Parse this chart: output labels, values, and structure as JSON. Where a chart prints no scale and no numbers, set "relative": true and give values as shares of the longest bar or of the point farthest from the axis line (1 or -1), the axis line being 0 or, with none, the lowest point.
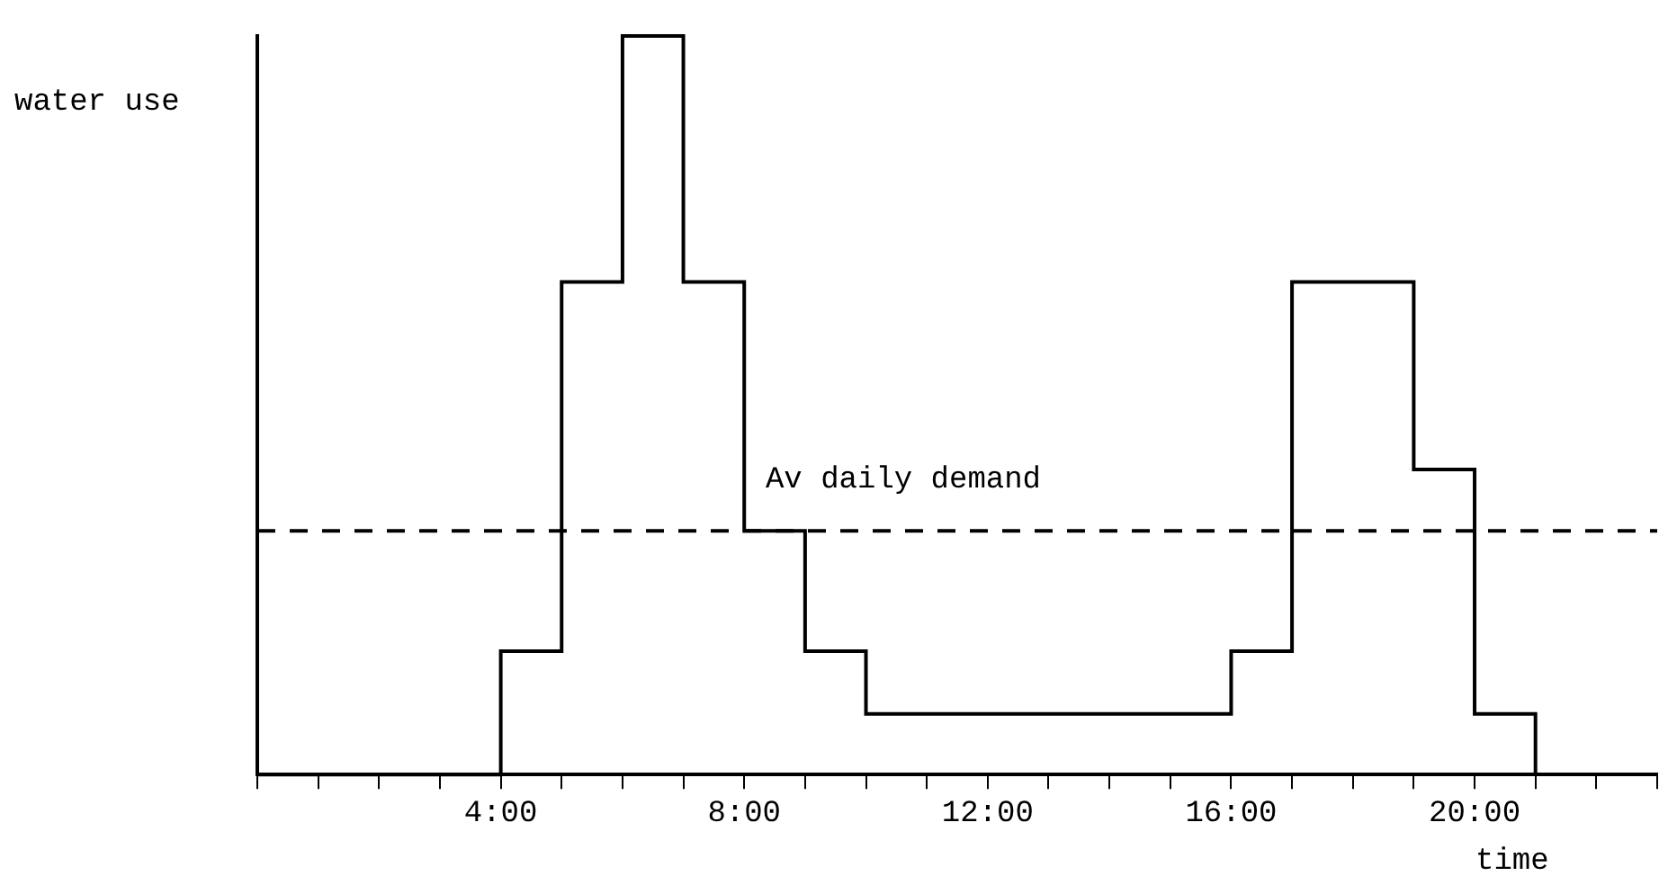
{
  "chart_data": {
    "type": "step",
    "xlabel": "time",
    "ylabel": "water use",
    "relative": true,
    "x": [
      0,
      4,
      5,
      6,
      7,
      8,
      9,
      10,
      16,
      17,
      19,
      20,
      21
    ],
    "values": [
      0,
      0.167,
      0.667,
      1,
      0.667,
      0.33,
      0.167,
      0.082,
      0.167,
      0.667,
      0.413,
      0.082,
      0
    ],
    "color": "#000000",
    "xlim": [
      0,
      23
    ],
    "xticks": [
      {
        "value": 0,
        "label": null
      },
      {
        "value": 1,
        "label": null
      },
      {
        "value": 2,
        "label": null
      },
      {
        "value": 3,
        "label": null
      },
      {
        "value": 4,
        "label": "4:00"
      },
      {
        "value": 5,
        "label": null
      },
      {
        "value": 6,
        "label": null
      },
      {
        "value": 7,
        "label": null
      },
      {
        "value": 8,
        "label": "8:00"
      },
      {
        "value": 9,
        "label": null
      },
      {
        "value": 10,
        "label": null
      },
      {
        "value": 11,
        "label": null
      },
      {
        "value": 12,
        "label": "12:00"
      },
      {
        "value": 13,
        "label": null
      },
      {
        "value": 14,
        "label": null
      },
      {
        "value": 15,
        "label": null
      },
      {
        "value": 16,
        "label": "16:00"
      },
      {
        "value": 17,
        "label": null
      },
      {
        "value": 18,
        "label": null
      },
      {
        "value": 19,
        "label": null
      },
      {
        "value": 20,
        "label": "20:00"
      },
      {
        "value": 21,
        "label": null
      },
      {
        "value": 22,
        "label": null
      },
      {
        "value": 23,
        "label": null
      }
    ],
    "ref_lines": [
      {
        "axis": "y",
        "value": 0.33,
        "label": "Av daily demand",
        "color": "#000000",
        "line_style": "dashed"
      }
    ],
    "grid": false,
    "legend": false,
    "marker": "none",
    "line_style": "solid"
  }
}
